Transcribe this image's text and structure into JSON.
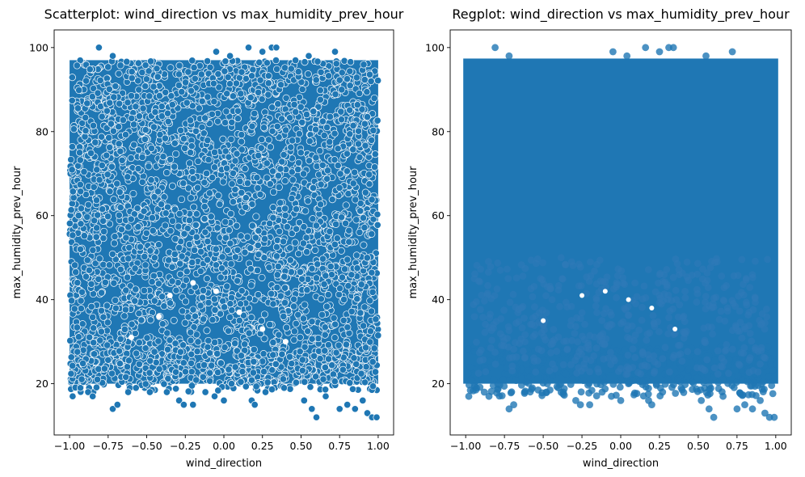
{
  "chart_data": [
    {
      "type": "scatter",
      "title": "Scatterplot: wind_direction vs max_humidity_prev_hour",
      "xlabel": "wind_direction",
      "ylabel": "max_humidity_prev_hour",
      "xlim": [
        -1.1,
        1.1
      ],
      "ylim": [
        7.8,
        104.2
      ],
      "xticks": [
        -1.0,
        -0.75,
        -0.5,
        -0.25,
        0.0,
        0.25,
        0.5,
        0.75,
        1.0
      ],
      "xtick_labels": [
        "−1.00",
        "−0.75",
        "−0.50",
        "−0.25",
        "0.00",
        "0.25",
        "0.50",
        "0.75",
        "1.00"
      ],
      "yticks": [
        20,
        40,
        60,
        80,
        100
      ],
      "ytick_labels": [
        "20",
        "40",
        "60",
        "80",
        "100"
      ],
      "grid": false,
      "legend": "none",
      "marker_color": "#1f77b4",
      "marker_edge": "#ffffff",
      "series": [
        {
          "density_band": {
            "x_range": [
              -1.0,
              1.0
            ],
            "y_range": [
              20,
              97
            ]
          },
          "points": [
            {
              "x": -0.98,
              "y": 17
            },
            {
              "x": -0.93,
              "y": 19
            },
            {
              "x": -0.88,
              "y": 18
            },
            {
              "x": -0.85,
              "y": 17
            },
            {
              "x": -0.82,
              "y": 21
            },
            {
              "x": -0.72,
              "y": 14
            },
            {
              "x": -0.69,
              "y": 15
            },
            {
              "x": -0.62,
              "y": 18
            },
            {
              "x": -0.57,
              "y": 19
            },
            {
              "x": -0.48,
              "y": 18
            },
            {
              "x": -0.37,
              "y": 18
            },
            {
              "x": -0.29,
              "y": 16
            },
            {
              "x": -0.26,
              "y": 15
            },
            {
              "x": -0.2,
              "y": 15
            },
            {
              "x": -0.12,
              "y": 18
            },
            {
              "x": -0.06,
              "y": 17
            },
            {
              "x": 0.0,
              "y": 16
            },
            {
              "x": 0.05,
              "y": 20
            },
            {
              "x": 0.18,
              "y": 16
            },
            {
              "x": 0.2,
              "y": 15
            },
            {
              "x": 0.27,
              "y": 18
            },
            {
              "x": 0.39,
              "y": 19
            },
            {
              "x": 0.52,
              "y": 16
            },
            {
              "x": 0.57,
              "y": 14
            },
            {
              "x": 0.6,
              "y": 12
            },
            {
              "x": 0.66,
              "y": 17
            },
            {
              "x": 0.75,
              "y": 14
            },
            {
              "x": 0.8,
              "y": 15
            },
            {
              "x": 0.85,
              "y": 14
            },
            {
              "x": 0.9,
              "y": 16
            },
            {
              "x": 0.93,
              "y": 13
            },
            {
              "x": 0.96,
              "y": 12
            },
            {
              "x": 0.99,
              "y": 12
            },
            {
              "x": -0.81,
              "y": 100
            },
            {
              "x": -0.72,
              "y": 98
            },
            {
              "x": -0.05,
              "y": 99
            },
            {
              "x": 0.04,
              "y": 98
            },
            {
              "x": 0.16,
              "y": 100
            },
            {
              "x": 0.25,
              "y": 99
            },
            {
              "x": 0.31,
              "y": 100
            },
            {
              "x": 0.34,
              "y": 100
            },
            {
              "x": 0.55,
              "y": 98
            },
            {
              "x": 0.72,
              "y": 99
            }
          ]
        }
      ]
    },
    {
      "type": "scatter",
      "title": "Regplot: wind_direction vs max_humidity_prev_hour",
      "xlabel": "wind_direction",
      "ylabel": "max_humidity_prev_hour",
      "xlim": [
        -1.1,
        1.1
      ],
      "ylim": [
        7.8,
        104.2
      ],
      "xticks": [
        -1.0,
        -0.75,
        -0.5,
        -0.25,
        0.0,
        0.25,
        0.5,
        0.75,
        1.0
      ],
      "xtick_labels": [
        "−1.00",
        "−0.75",
        "−0.50",
        "−0.25",
        "0.00",
        "0.25",
        "0.50",
        "0.75",
        "1.00"
      ],
      "yticks": [
        20,
        40,
        60,
        80,
        100
      ],
      "ytick_labels": [
        "20",
        "40",
        "60",
        "80",
        "100"
      ],
      "grid": false,
      "legend": "none",
      "marker_color": "#1f77b4",
      "series": [
        {
          "density_band": {
            "x_range": [
              -1.0,
              1.0
            ],
            "y_range": [
              20,
              97
            ]
          },
          "points": [
            {
              "x": -0.98,
              "y": 17
            },
            {
              "x": -0.93,
              "y": 19
            },
            {
              "x": -0.88,
              "y": 18
            },
            {
              "x": -0.85,
              "y": 17
            },
            {
              "x": -0.82,
              "y": 21
            },
            {
              "x": -0.72,
              "y": 14
            },
            {
              "x": -0.69,
              "y": 15
            },
            {
              "x": -0.62,
              "y": 18
            },
            {
              "x": -0.57,
              "y": 19
            },
            {
              "x": -0.48,
              "y": 18
            },
            {
              "x": -0.37,
              "y": 18
            },
            {
              "x": -0.29,
              "y": 16
            },
            {
              "x": -0.26,
              "y": 15
            },
            {
              "x": -0.2,
              "y": 15
            },
            {
              "x": -0.12,
              "y": 18
            },
            {
              "x": -0.06,
              "y": 17
            },
            {
              "x": 0.0,
              "y": 16
            },
            {
              "x": 0.05,
              "y": 20
            },
            {
              "x": 0.18,
              "y": 16
            },
            {
              "x": 0.2,
              "y": 15
            },
            {
              "x": 0.27,
              "y": 18
            },
            {
              "x": 0.39,
              "y": 19
            },
            {
              "x": 0.52,
              "y": 16
            },
            {
              "x": 0.57,
              "y": 14
            },
            {
              "x": 0.6,
              "y": 12
            },
            {
              "x": 0.66,
              "y": 17
            },
            {
              "x": 0.75,
              "y": 14
            },
            {
              "x": 0.8,
              "y": 15
            },
            {
              "x": 0.85,
              "y": 14
            },
            {
              "x": 0.9,
              "y": 16
            },
            {
              "x": 0.93,
              "y": 13
            },
            {
              "x": 0.96,
              "y": 12
            },
            {
              "x": 0.99,
              "y": 12
            },
            {
              "x": -0.81,
              "y": 100
            },
            {
              "x": -0.72,
              "y": 98
            },
            {
              "x": -0.05,
              "y": 99
            },
            {
              "x": 0.04,
              "y": 98
            },
            {
              "x": 0.16,
              "y": 100
            },
            {
              "x": 0.25,
              "y": 99
            },
            {
              "x": 0.31,
              "y": 100
            },
            {
              "x": 0.34,
              "y": 100
            },
            {
              "x": 0.55,
              "y": 98
            },
            {
              "x": 0.72,
              "y": 99
            }
          ]
        }
      ]
    }
  ]
}
